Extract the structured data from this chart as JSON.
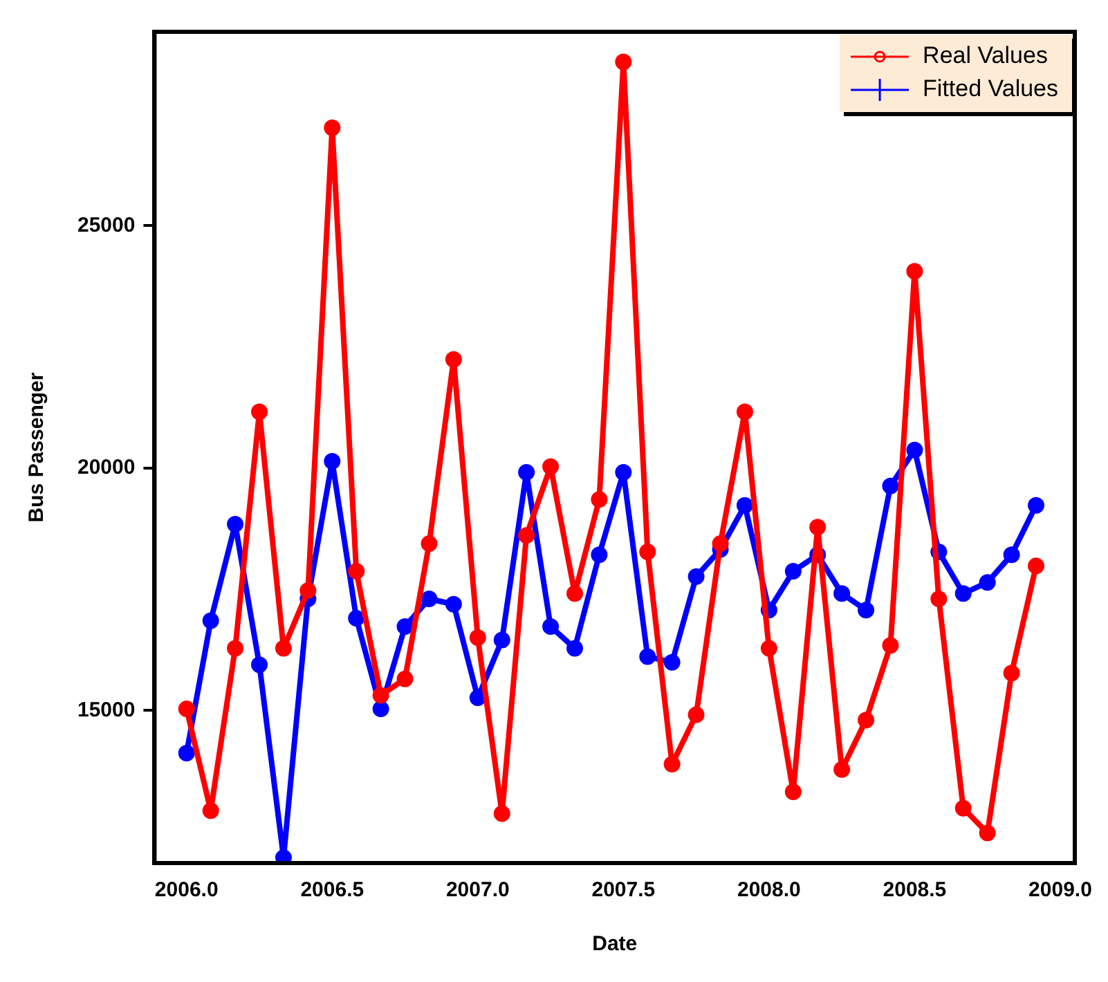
{
  "chart_data": {
    "type": "line",
    "xlabel": "Date",
    "ylabel": "Bus Passenger",
    "x": [
      2006.0,
      2006.083,
      2006.167,
      2006.25,
      2006.333,
      2006.417,
      2006.5,
      2006.583,
      2006.667,
      2006.75,
      2006.833,
      2006.917,
      2007.0,
      2007.083,
      2007.167,
      2007.25,
      2007.333,
      2007.417,
      2007.5,
      2007.583,
      2007.667,
      2007.75,
      2007.833,
      2007.917,
      2008.0,
      2008.083,
      2008.167,
      2008.25,
      2008.333,
      2008.417,
      2008.5,
      2008.583,
      2008.667,
      2008.75,
      2008.833,
      2008.917
    ],
    "series": [
      {
        "name": "Real Values",
        "color": "#ff0000",
        "values": [
          15030,
          12930,
          16280,
          21160,
          16280,
          17470,
          27020,
          17870,
          15310,
          15650,
          18440,
          22240,
          16500,
          12870,
          18610,
          20030,
          17410,
          19350,
          28380,
          18270,
          13890,
          14910,
          18440,
          21160,
          16280,
          13320,
          18780,
          13780,
          14800,
          16340,
          24060,
          17300,
          12980,
          12470,
          15770,
          17980
        ]
      },
      {
        "name": "Fitted Values",
        "color": "#0000ff",
        "values": [
          14120,
          16850,
          18840,
          15940,
          11960,
          17300,
          20140,
          16900,
          15030,
          16730,
          17300,
          17190,
          15260,
          16450,
          19910,
          16730,
          16280,
          18210,
          19910,
          16110,
          15990,
          17760,
          18320,
          19230,
          17070,
          17870,
          18210,
          17410,
          17070,
          19630,
          20370,
          18270,
          17410,
          17640,
          18210,
          19230
        ]
      }
    ],
    "xlim": [
      2005.89,
      2009.05
    ],
    "xticks": [
      {
        "value": 2006,
        "label": "2006.0"
      },
      {
        "value": 2006.5,
        "label": "2006.5"
      },
      {
        "value": 2007,
        "label": "2007.0"
      },
      {
        "value": 2007.5,
        "label": "2007.5"
      },
      {
        "value": 2008,
        "label": "2008.0"
      },
      {
        "value": 2008.5,
        "label": "2008.5"
      },
      {
        "value": 2009,
        "label": "2009.0"
      }
    ],
    "ylim": [
      11850,
      29000
    ],
    "yticks": [
      15000,
      20000,
      25000
    ],
    "legend": "top right",
    "marker": "circle",
    "line_style": "solid",
    "grid": false
  }
}
